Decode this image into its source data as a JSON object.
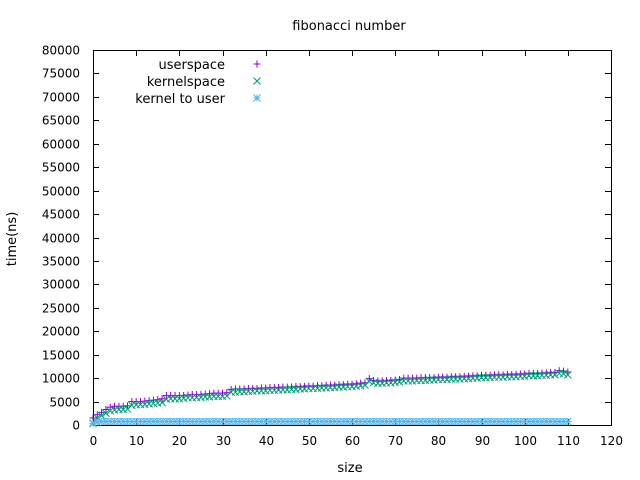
{
  "chart_data": {
    "type": "scatter",
    "title": "fibonacci number",
    "xlabel": "size",
    "ylabel": "time(ns)",
    "xlim": [
      0,
      120
    ],
    "ylim": [
      0,
      80000
    ],
    "xticks": [
      "0",
      "10",
      "20",
      "30",
      "40",
      "50",
      "60",
      "70",
      "80",
      "90",
      "100",
      "110",
      "120"
    ],
    "yticks": [
      "0",
      "5000",
      "10000",
      "15000",
      "20000",
      "25000",
      "30000",
      "35000",
      "40000",
      "45000",
      "50000",
      "55000",
      "60000",
      "65000",
      "70000",
      "75000",
      "80000"
    ],
    "grid": false,
    "legend_position": "top-left",
    "x": [
      0,
      1,
      2,
      3,
      4,
      5,
      6,
      7,
      8,
      9,
      10,
      11,
      12,
      13,
      14,
      15,
      16,
      17,
      18,
      19,
      20,
      21,
      22,
      23,
      24,
      25,
      26,
      27,
      28,
      29,
      30,
      31,
      32,
      33,
      34,
      35,
      36,
      37,
      38,
      39,
      40,
      41,
      42,
      43,
      44,
      45,
      46,
      47,
      48,
      49,
      50,
      51,
      52,
      53,
      54,
      55,
      56,
      57,
      58,
      59,
      60,
      61,
      62,
      63,
      64,
      65,
      66,
      67,
      68,
      69,
      70,
      71,
      72,
      73,
      74,
      75,
      76,
      77,
      78,
      79,
      80,
      81,
      82,
      83,
      84,
      85,
      86,
      87,
      88,
      89,
      90,
      91,
      92,
      93,
      94,
      95,
      96,
      97,
      98,
      99,
      100,
      101,
      102,
      103,
      104,
      105,
      106,
      107,
      108,
      109,
      110
    ],
    "series": [
      {
        "name": "userspace",
        "marker": "plus",
        "color": "#9400d3",
        "values": [
          1500,
          2200,
          2700,
          3300,
          3800,
          4000,
          4000,
          4000,
          4100,
          5000,
          5000,
          5000,
          5100,
          5200,
          5300,
          5400,
          5600,
          6300,
          6300,
          6300,
          6300,
          6300,
          6400,
          6500,
          6500,
          6500,
          6600,
          6700,
          6800,
          6800,
          6800,
          6900,
          7600,
          7700,
          7700,
          7700,
          7800,
          7800,
          7800,
          7900,
          7900,
          8000,
          8000,
          8000,
          8100,
          8100,
          8100,
          8200,
          8200,
          8200,
          8300,
          8300,
          8400,
          8400,
          8500,
          8500,
          8500,
          8600,
          8600,
          8700,
          8700,
          8800,
          8900,
          9000,
          9900,
          9500,
          9400,
          9400,
          9500,
          9500,
          9600,
          9700,
          10000,
          10000,
          10000,
          10000,
          10100,
          10100,
          10100,
          10100,
          10200,
          10200,
          10200,
          10300,
          10300,
          10300,
          10400,
          10400,
          10500,
          10500,
          10600,
          10600,
          10600,
          10700,
          10700,
          10700,
          10800,
          10800,
          10800,
          10900,
          10900,
          11000,
          11000,
          11000,
          11100,
          11100,
          11200,
          11200,
          11600,
          11500,
          11300
        ]
      },
      {
        "name": "kernelspace",
        "marker": "cross",
        "color": "#009e73",
        "values": [
          400,
          1500,
          2000,
          2500,
          3000,
          3200,
          3300,
          3300,
          3400,
          4200,
          4300,
          4400,
          4400,
          4500,
          4600,
          4700,
          4800,
          5500,
          5600,
          5600,
          5600,
          5700,
          5800,
          5800,
          5900,
          5900,
          6000,
          6000,
          6100,
          6100,
          6100,
          6200,
          7000,
          7000,
          7100,
          7100,
          7200,
          7200,
          7300,
          7300,
          7300,
          7400,
          7400,
          7500,
          7500,
          7500,
          7600,
          7600,
          7700,
          7700,
          7800,
          7800,
          7800,
          7900,
          7900,
          8000,
          8000,
          8100,
          8100,
          8200,
          8200,
          8300,
          8400,
          8500,
          9300,
          9000,
          8900,
          8900,
          9000,
          9000,
          9100,
          9200,
          9400,
          9400,
          9400,
          9500,
          9500,
          9500,
          9600,
          9600,
          9700,
          9700,
          9700,
          9800,
          9800,
          9800,
          9900,
          9900,
          10000,
          10000,
          10100,
          10100,
          10100,
          10200,
          10200,
          10200,
          10300,
          10300,
          10300,
          10400,
          10400,
          10500,
          10500,
          10500,
          10600,
          10600,
          10700,
          10700,
          11000,
          10900,
          10700
        ]
      },
      {
        "name": "kernel to user",
        "marker": "star",
        "color": "#56b4e9",
        "values": [
          300,
          600,
          700,
          750,
          750,
          750,
          750,
          750,
          750,
          750,
          750,
          750,
          750,
          750,
          750,
          750,
          750,
          750,
          750,
          750,
          750,
          750,
          750,
          750,
          750,
          750,
          750,
          750,
          750,
          750,
          750,
          750,
          750,
          750,
          750,
          750,
          750,
          750,
          750,
          750,
          750,
          750,
          750,
          750,
          750,
          750,
          750,
          750,
          750,
          750,
          750,
          750,
          750,
          750,
          750,
          750,
          750,
          750,
          750,
          750,
          750,
          750,
          750,
          750,
          750,
          750,
          750,
          750,
          750,
          750,
          750,
          750,
          750,
          750,
          750,
          750,
          750,
          750,
          750,
          750,
          750,
          750,
          750,
          750,
          750,
          750,
          750,
          750,
          750,
          750,
          750,
          750,
          750,
          750,
          750,
          750,
          750,
          750,
          750,
          750,
          750,
          750,
          750,
          750,
          750,
          750,
          750,
          750,
          750,
          750,
          750
        ]
      }
    ]
  }
}
